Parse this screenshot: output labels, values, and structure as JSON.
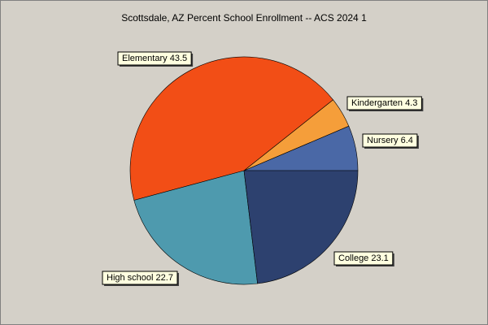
{
  "chart_data": {
    "type": "pie",
    "title": "Scottsdale, AZ Percent School Enrollment -- ACS 2024 1",
    "categories": [
      "Nursery",
      "Kindergarten",
      "Elementary",
      "High school",
      "College"
    ],
    "values": [
      6.4,
      4.3,
      43.5,
      22.7,
      23.1
    ],
    "colors": [
      "#4a68a6",
      "#f59e3a",
      "#f24e16",
      "#4e9aae",
      "#2d416f"
    ]
  }
}
